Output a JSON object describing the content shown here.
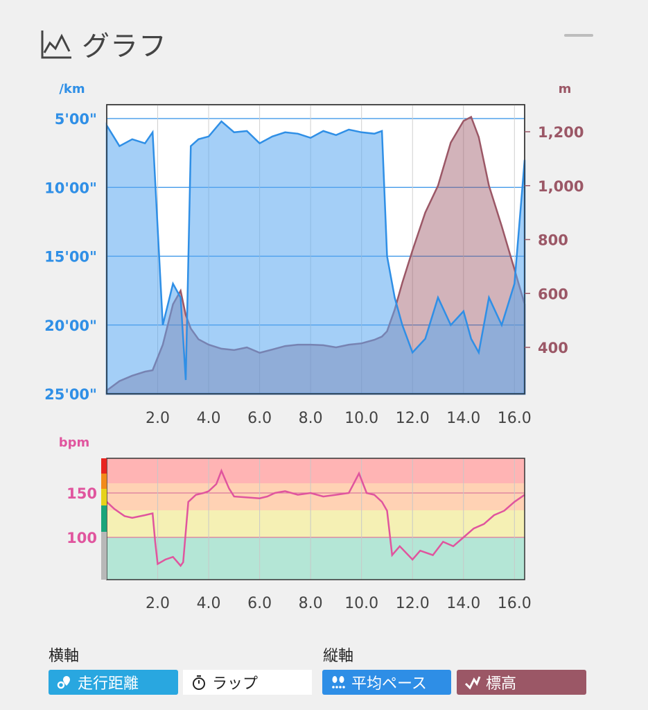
{
  "header": {
    "title": "グラフ",
    "icon": "graph-icon"
  },
  "pace_chart": {
    "left_unit": "/km",
    "right_unit": "m",
    "left_ticks": [
      "5'00\"",
      "10'00\"",
      "15'00\"",
      "20'00\"",
      "25'00\""
    ],
    "right_ticks": [
      "1,200",
      "1,000",
      "800",
      "600",
      "400"
    ],
    "x_ticks": [
      "2.0",
      "4.0",
      "6.0",
      "8.0",
      "10.0",
      "12.0",
      "14.0",
      "16.0"
    ],
    "pace_color": "#2f8fe6",
    "elevation_color": "#9b5766"
  },
  "hr_chart": {
    "unit": "bpm",
    "y_ticks": [
      "150",
      "100"
    ],
    "x_ticks": [
      "2.0",
      "4.0",
      "6.0",
      "8.0",
      "10.0",
      "12.0",
      "14.0",
      "16.0"
    ],
    "zone_colors": [
      "#ffb4b4",
      "#ffd2b4",
      "#f5f0b4",
      "#b4e6d6"
    ],
    "line_color": "#e0559e"
  },
  "controls": {
    "horizontal_axis_label": "横軸",
    "vertical_axis_label": "縦軸",
    "distance_button": "走行距離",
    "lap_button": "ラップ",
    "avg_pace_button": "平均ペース",
    "elevation_button": "標高"
  },
  "chart_data": [
    {
      "type": "area",
      "title": "",
      "xlabel": "",
      "x": [
        0,
        0.5,
        1,
        1.5,
        1.8,
        2.2,
        2.6,
        2.9,
        3.1,
        3.3,
        3.6,
        4,
        4.5,
        5,
        5.5,
        6,
        6.5,
        7,
        7.5,
        8,
        8.5,
        9,
        9.5,
        10,
        10.5,
        10.8,
        11,
        11.3,
        11.6,
        12,
        12.5,
        13,
        13.5,
        14,
        14.3,
        14.6,
        15,
        15.5,
        16,
        16.4
      ],
      "series": [
        {
          "axis": "left",
          "values": [
            5.5,
            7,
            6.5,
            6.8,
            6,
            20,
            17,
            18,
            24,
            7,
            6.5,
            6.3,
            5.2,
            6,
            5.9,
            6.8,
            6.3,
            6,
            6.1,
            6.4,
            5.9,
            6.2,
            5.8,
            6,
            6.1,
            5.9,
            15,
            18,
            20,
            22,
            21,
            18,
            20,
            19,
            21,
            22,
            18,
            20,
            17,
            8
          ]
        },
        {
          "axis": "right",
          "values": [
            240,
            275,
            295,
            310,
            315,
            410,
            560,
            610,
            520,
            470,
            430,
            410,
            395,
            390,
            400,
            380,
            392,
            405,
            410,
            410,
            408,
            400,
            410,
            415,
            428,
            440,
            460,
            540,
            640,
            760,
            900,
            1000,
            1160,
            1240,
            1255,
            1180,
            1000,
            850,
            690,
            560
          ]
        }
      ],
      "y_left_lim": [
        25,
        5
      ],
      "y_right_lim": [
        250,
        1300
      ],
      "xlim": [
        0,
        16.4
      ]
    },
    {
      "type": "line",
      "title": "",
      "x": [
        0,
        0.3,
        0.7,
        1,
        1.5,
        1.8,
        1.9,
        2,
        2.3,
        2.6,
        2.9,
        3.0,
        3.2,
        3.5,
        3.8,
        4,
        4.3,
        4.5,
        4.8,
        5,
        5.5,
        6,
        6.3,
        6.6,
        7,
        7.5,
        8,
        8.5,
        9,
        9.5,
        9.9,
        10.2,
        10.5,
        10.8,
        11,
        11.2,
        11.5,
        12,
        12.3,
        12.8,
        13.2,
        13.6,
        14,
        14.4,
        14.8,
        15.2,
        15.6,
        16,
        16.4
      ],
      "values": [
        140,
        132,
        124,
        122,
        125,
        127,
        95,
        70,
        75,
        78,
        68,
        72,
        140,
        148,
        150,
        152,
        160,
        175,
        155,
        146,
        145,
        144,
        146,
        150,
        152,
        148,
        150,
        146,
        148,
        150,
        172,
        150,
        148,
        140,
        130,
        80,
        90,
        75,
        85,
        80,
        95,
        90,
        100,
        110,
        115,
        125,
        130,
        140,
        148
      ],
      "ylim": [
        45,
        195
      ],
      "xlim": [
        0,
        16.4
      ]
    }
  ]
}
